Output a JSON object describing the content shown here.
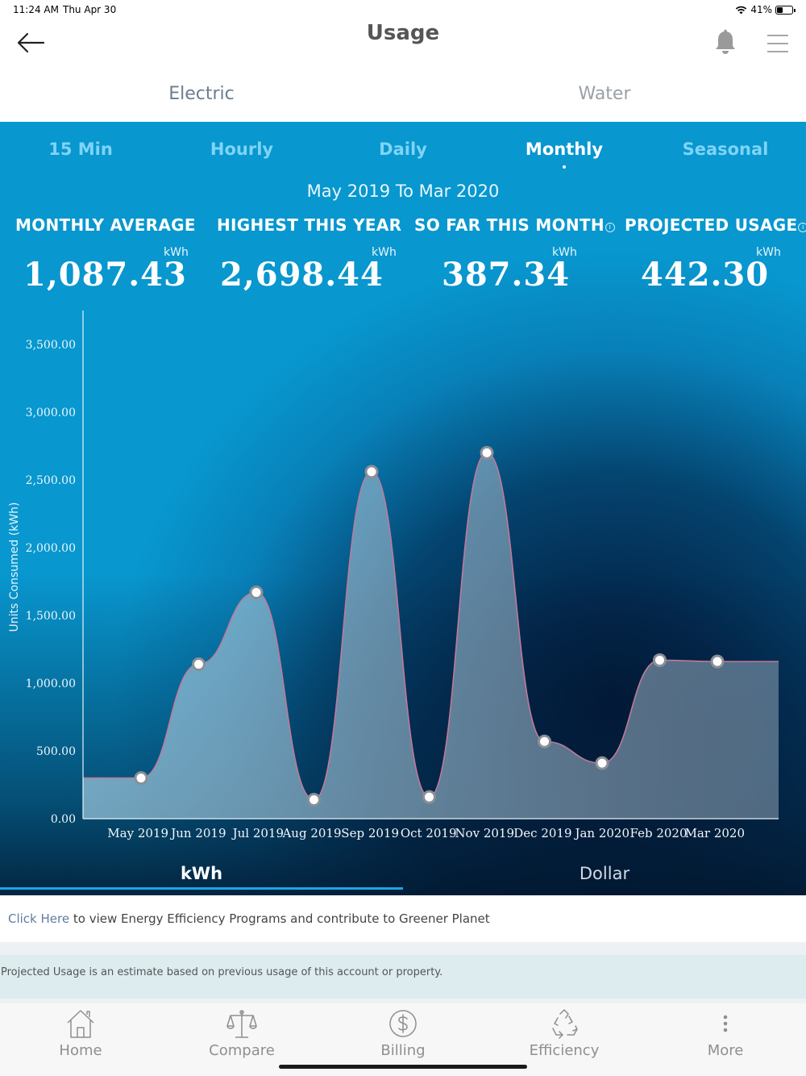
{
  "status_bar": {
    "time": "11:24 AM",
    "date": "Thu Apr 30",
    "battery": "41%"
  },
  "nav": {
    "title": "Usage"
  },
  "utility_tabs": [
    {
      "label": "Electric",
      "active": true
    },
    {
      "label": "Water",
      "active": false
    }
  ],
  "period_tabs": [
    {
      "label": "15 Min",
      "active": false
    },
    {
      "label": "Hourly",
      "active": false
    },
    {
      "label": "Daily",
      "active": false
    },
    {
      "label": "Monthly",
      "active": true
    },
    {
      "label": "Seasonal",
      "active": false
    }
  ],
  "range": "May 2019 To Mar 2020",
  "stats": [
    {
      "label": "MONTHLY AVERAGE",
      "unit": "kWh",
      "value": "1,087.43",
      "info": false
    },
    {
      "label": "HIGHEST THIS YEAR",
      "unit": "kWh",
      "value": "2,698.44",
      "info": false
    },
    {
      "label": "SO FAR THIS MONTH",
      "unit": "kWh",
      "value": "387.34",
      "info": true
    },
    {
      "label": "PROJECTED USAGE",
      "unit": "kWh",
      "value": "442.30",
      "info": true
    }
  ],
  "chart_data": {
    "type": "area",
    "ylabel": "Units Consumed (kWh)",
    "ylim": [
      0,
      3750
    ],
    "yticks": [
      "0.00",
      "500.00",
      "1,000.00",
      "1,500.00",
      "2,000.00",
      "2,500.00",
      "3,000.00",
      "3,500.00"
    ],
    "ytick_values": [
      0,
      500,
      1000,
      1500,
      2000,
      2500,
      3000,
      3500
    ],
    "categories": [
      "May 2019",
      "Jun 2019",
      "Jul 2019",
      "Aug 2019",
      "Sep 2019",
      "Oct 2019",
      "Nov 2019",
      "Dec 2019",
      "Jan 2020",
      "Feb 2020",
      "Mar 2020"
    ],
    "values": [
      300,
      1140,
      1670,
      140,
      2560,
      160,
      2700,
      570,
      410,
      1170,
      1160
    ],
    "line_color": "#c07a9a",
    "fill_color": "#a9c8d8",
    "marker_color": "#ffffff"
  },
  "unit_tabs": [
    {
      "label": "kWh",
      "active": true
    },
    {
      "label": "Dollar",
      "active": false
    }
  ],
  "promo": {
    "link": "Click Here",
    "text": " to view Energy Efficiency Programs and contribute to Greener Planet"
  },
  "note": "Projected Usage is an estimate based on previous usage of this account or property.",
  "bottom_nav": [
    {
      "label": "Home",
      "icon": "home-icon"
    },
    {
      "label": "Compare",
      "icon": "scale-icon"
    },
    {
      "label": "Billing",
      "icon": "dollar-icon"
    },
    {
      "label": "Efficiency",
      "icon": "recycle-icon"
    },
    {
      "label": "More",
      "icon": "more-icon"
    }
  ]
}
